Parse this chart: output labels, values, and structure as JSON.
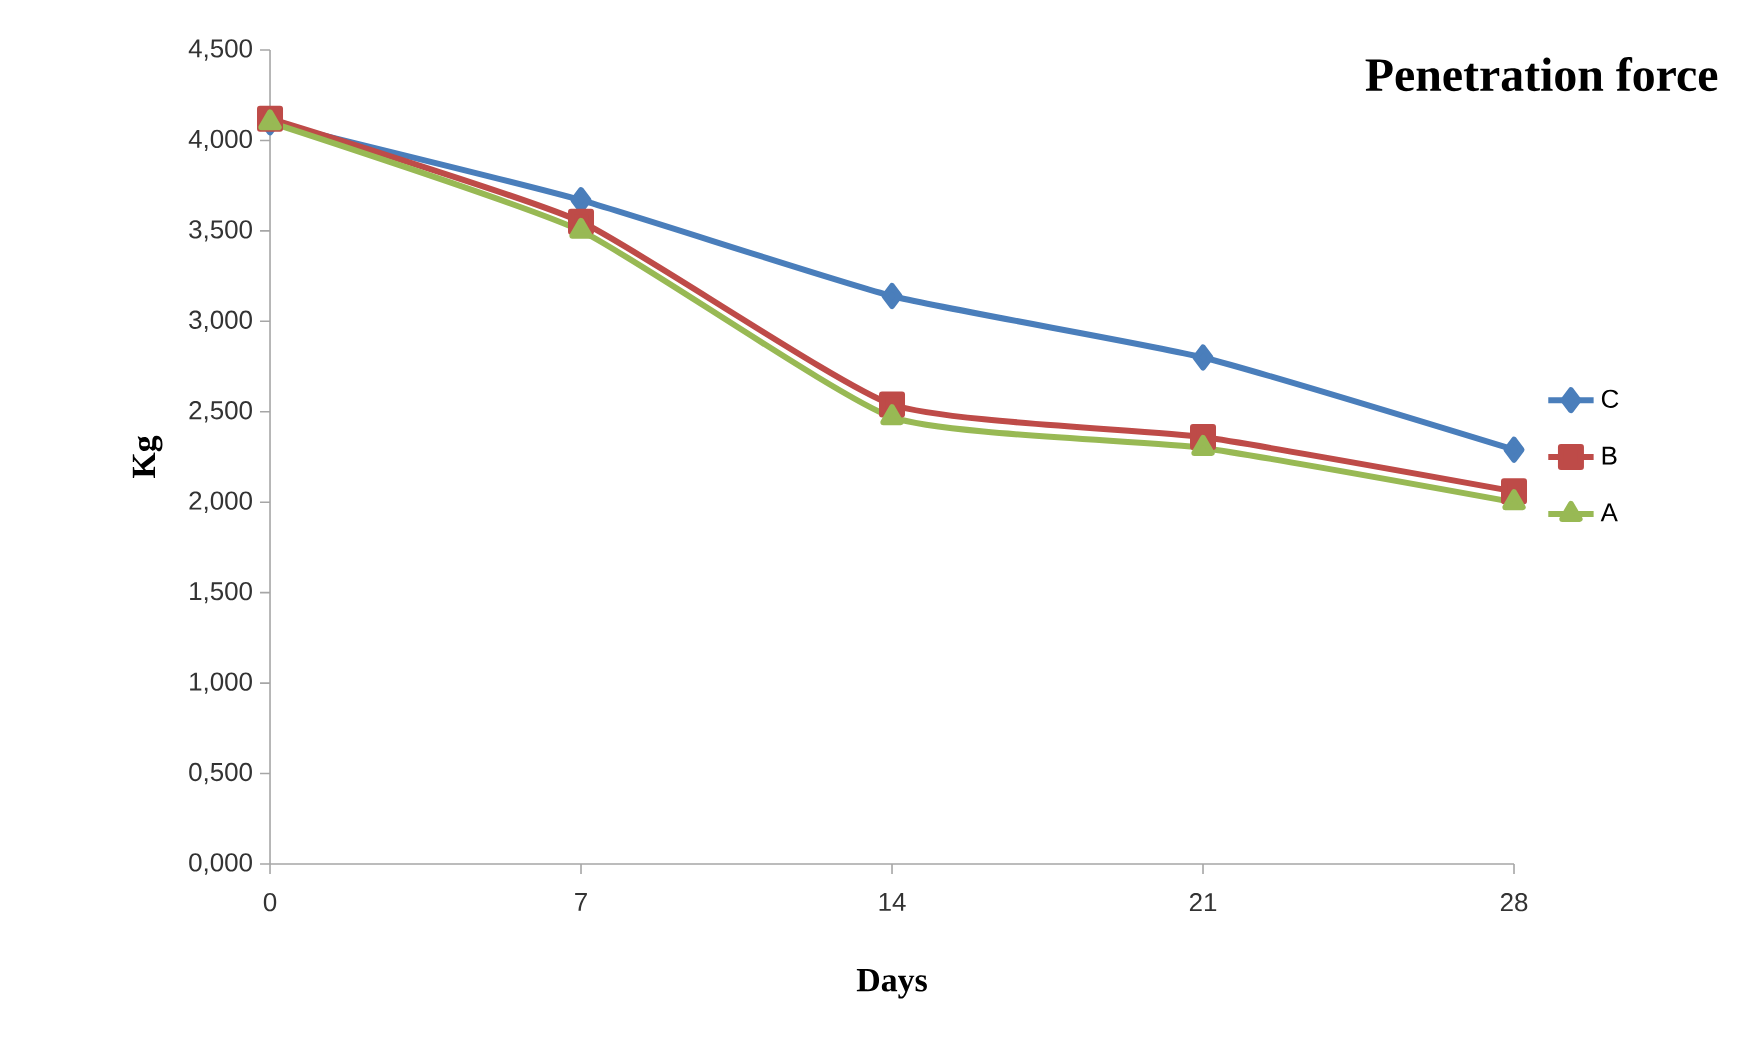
{
  "chart_data": {
    "type": "line",
    "title": "Penetration force",
    "xlabel": "Days",
    "ylabel": "Kg",
    "categories": [
      "0",
      "7",
      "14",
      "21",
      "28"
    ],
    "series": [
      {
        "name": "C",
        "color": "#4a7ebb",
        "marker": "diamond",
        "values": [
          4.1,
          3.67,
          3.14,
          2.8,
          2.29
        ]
      },
      {
        "name": "B",
        "color": "#be4b48",
        "marker": "square",
        "values": [
          4.12,
          3.55,
          2.54,
          2.36,
          2.06
        ]
      },
      {
        "name": "A",
        "color": "#98b954",
        "marker": "triangle",
        "values": [
          4.1,
          3.5,
          2.47,
          2.3,
          2.0
        ]
      }
    ],
    "ylim": [
      0,
      4.5
    ],
    "yticks": [
      {
        "value": 0,
        "label": "0,000"
      },
      {
        "value": 0.5,
        "label": "0,500"
      },
      {
        "value": 1,
        "label": "1,000"
      },
      {
        "value": 1.5,
        "label": "1,500"
      },
      {
        "value": 2,
        "label": "2,000"
      },
      {
        "value": 2.5,
        "label": "2,500"
      },
      {
        "value": 3,
        "label": "3,000"
      },
      {
        "value": 3.5,
        "label": "3,500"
      },
      {
        "value": 4,
        "label": "4,000"
      },
      {
        "value": 4.5,
        "label": "4,500"
      }
    ],
    "grid": false,
    "legend": "right",
    "line_style": "solid"
  }
}
